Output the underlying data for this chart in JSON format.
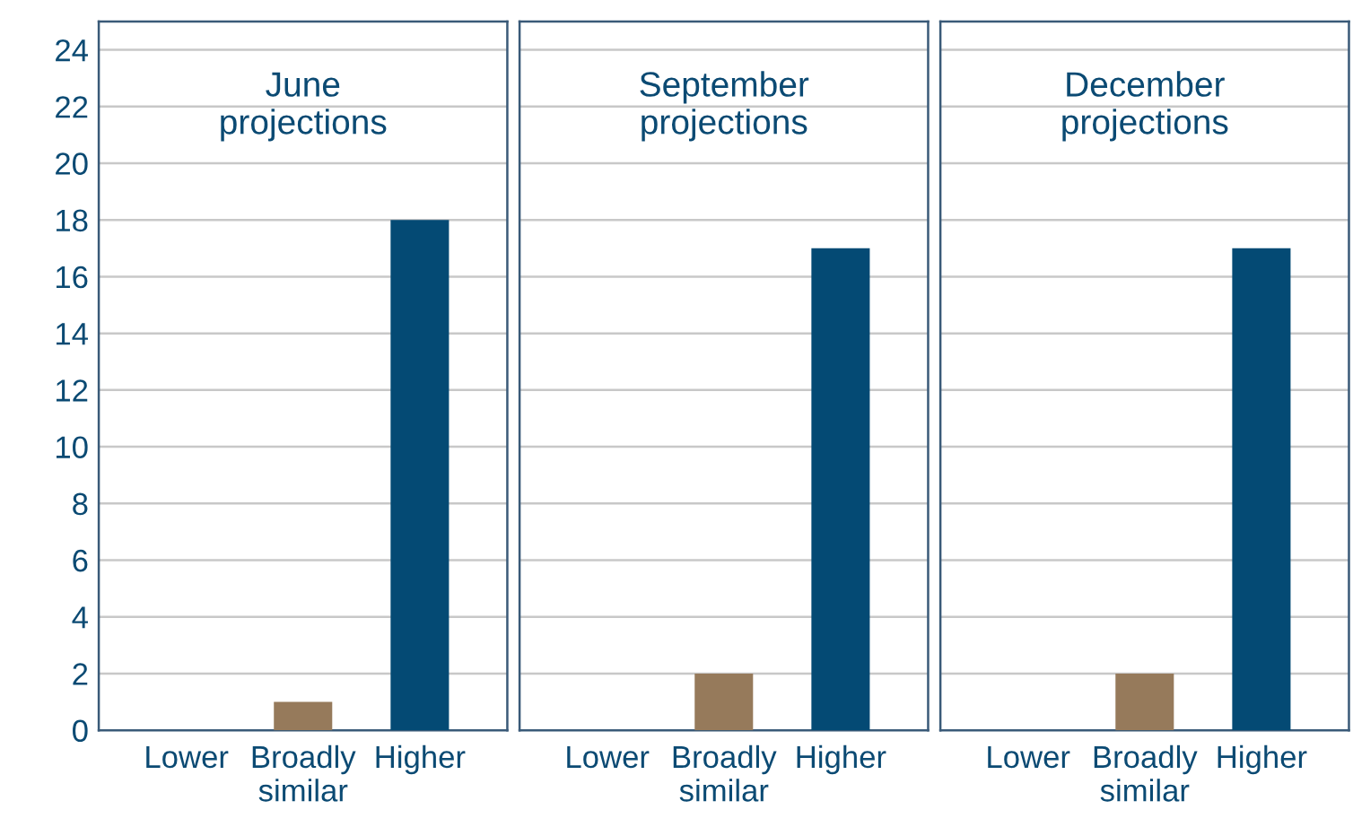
{
  "chart_data": [
    {
      "type": "bar",
      "annotations": [
        "June\nprojections"
      ],
      "categories": [
        "Lower",
        "Broadly\nsimilar",
        "Higher"
      ],
      "values": [
        0,
        1,
        18
      ],
      "colors": [
        "#967a5b",
        "#967a5b",
        "#044a74"
      ],
      "ylim": [
        0,
        25
      ],
      "yticks": [
        0,
        2,
        4,
        6,
        8,
        10,
        12,
        14,
        16,
        18,
        20,
        22,
        24
      ],
      "grid": "y",
      "legend": false
    },
    {
      "type": "bar",
      "annotations": [
        "September\nprojections"
      ],
      "categories": [
        "Lower",
        "Broadly\nsimilar",
        "Higher"
      ],
      "values": [
        0,
        2,
        17
      ],
      "colors": [
        "#967a5b",
        "#967a5b",
        "#044a74"
      ],
      "ylim": [
        0,
        25
      ],
      "yticks": [
        0,
        2,
        4,
        6,
        8,
        10,
        12,
        14,
        16,
        18,
        20,
        22,
        24
      ],
      "grid": "y",
      "tick_labels": "x",
      "legend": false
    },
    {
      "type": "bar",
      "annotations": [
        "December\nprojections"
      ],
      "categories": [
        "Lower",
        "Broadly\nsimilar",
        "Higher"
      ],
      "values": [
        0,
        2,
        17
      ],
      "colors": [
        "#967a5b",
        "#967a5b",
        "#044a74"
      ],
      "ylim": [
        0,
        25
      ],
      "yticks": [
        0,
        2,
        4,
        6,
        8,
        10,
        12,
        14,
        16,
        18,
        20,
        22,
        24
      ],
      "grid": "y",
      "tick_labels": "x",
      "legend": false
    }
  ]
}
